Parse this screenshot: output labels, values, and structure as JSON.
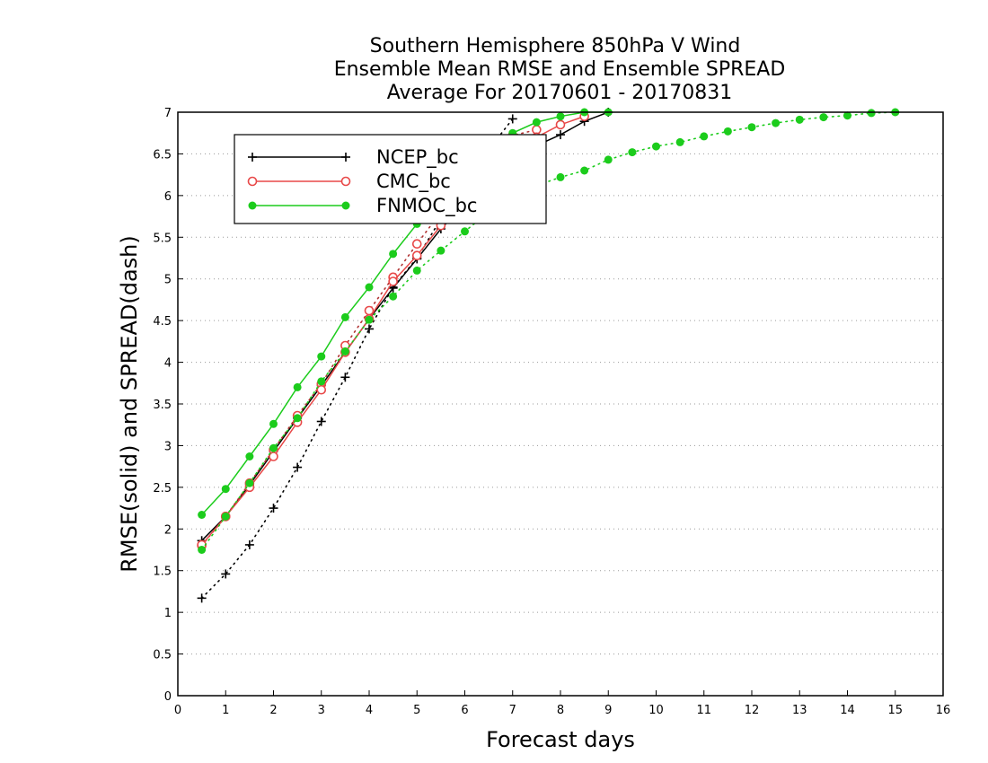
{
  "chart_data": {
    "type": "line",
    "title": [
      "Southern Hemisphere 850hPa V Wind",
      "Ensemble Mean RMSE and Ensemble SPREAD",
      "Average For 20170601 - 20170831"
    ],
    "xlabel": "Forecast days",
    "ylabel": "RMSE(solid) and SPREAD(dash)",
    "xlim": [
      0,
      16
    ],
    "ylim": [
      0,
      7
    ],
    "xticks": [
      "0",
      "1",
      "2",
      "3",
      "4",
      "5",
      "6",
      "7",
      "8",
      "9",
      "10",
      "11",
      "12",
      "13",
      "14",
      "15",
      "16"
    ],
    "yticks": [
      "0",
      "0.5",
      "1",
      "1.5",
      "2",
      "2.5",
      "3",
      "3.5",
      "4",
      "4.5",
      "5",
      "5.5",
      "6",
      "6.5",
      "7"
    ],
    "grid": "horizontal-dotted",
    "legend_position": "top-left",
    "series": [
      {
        "name": "NCEP_bc",
        "color": "#000000",
        "marker": "plus",
        "rmse": {
          "x": [
            0.5,
            1,
            1.5,
            2,
            2.5,
            3,
            3.5,
            4,
            4.5,
            5,
            5.5,
            6,
            6.5,
            7,
            7.5,
            8,
            8.5,
            9
          ],
          "y": [
            1.86,
            2.15,
            2.53,
            2.93,
            3.33,
            3.72,
            4.12,
            4.52,
            4.89,
            5.24,
            5.6,
            5.9,
            6.18,
            6.42,
            6.6,
            6.73,
            6.89,
            7.0
          ]
        },
        "spread": {
          "x": [
            0.5,
            1,
            1.5,
            2,
            2.5,
            3,
            3.5,
            4,
            4.5,
            5,
            5.5,
            6,
            6.5,
            7
          ],
          "y": [
            1.17,
            1.46,
            1.81,
            2.25,
            2.74,
            3.29,
            3.82,
            4.4,
            4.9,
            5.25,
            5.72,
            6.15,
            6.55,
            6.92
          ]
        }
      },
      {
        "name": "CMC_bc",
        "color": "#e84848",
        "marker": "open-circle",
        "rmse": {
          "x": [
            0.5,
            1,
            1.5,
            2,
            2.5,
            3,
            3.5,
            4,
            4.5,
            5,
            5.5,
            6,
            6.5,
            7,
            7.5,
            8,
            8.5
          ],
          "y": [
            1.81,
            2.15,
            2.5,
            2.87,
            3.28,
            3.67,
            4.12,
            4.52,
            4.97,
            5.28,
            5.64,
            5.97,
            6.27,
            6.52,
            6.7,
            6.85,
            6.95
          ]
        },
        "spread": {
          "x": [
            0.5,
            1,
            1.5,
            2,
            2.5,
            3,
            3.5,
            4,
            4.5,
            5,
            5.5,
            6,
            6.5,
            7,
            7.5
          ],
          "y": [
            1.8,
            2.15,
            2.55,
            2.95,
            3.36,
            3.74,
            4.2,
            4.62,
            5.02,
            5.42,
            5.8,
            6.15,
            6.48,
            6.72,
            6.79
          ]
        }
      },
      {
        "name": "FNMOC_bc",
        "color": "#1ccc1c",
        "marker": "filled-circle",
        "rmse": {
          "x": [
            0.5,
            1,
            1.5,
            2,
            2.5,
            3,
            3.5,
            4,
            4.5,
            5,
            5.5,
            6,
            6.5,
            7,
            7.5,
            8,
            8.5,
            9
          ],
          "y": [
            2.17,
            2.48,
            2.87,
            3.26,
            3.7,
            4.07,
            4.54,
            4.9,
            5.3,
            5.66,
            6.0,
            6.3,
            6.55,
            6.75,
            6.88,
            6.95,
            7.0,
            7.0
          ]
        },
        "spread": {
          "x": [
            0.5,
            1,
            1.5,
            2,
            2.5,
            3,
            3.5,
            4,
            4.5,
            5,
            5.5,
            6,
            6.5,
            7,
            7.5,
            8,
            8.5,
            9,
            9.5,
            10,
            10.5,
            11,
            11.5,
            12,
            12.5,
            13,
            13.5,
            14,
            14.5,
            15
          ],
          "y": [
            1.75,
            2.15,
            2.55,
            2.97,
            3.33,
            3.77,
            4.13,
            4.51,
            4.79,
            5.1,
            5.34,
            5.57,
            5.8,
            5.98,
            6.12,
            6.22,
            6.3,
            6.43,
            6.52,
            6.59,
            6.64,
            6.71,
            6.77,
            6.82,
            6.87,
            6.91,
            6.94,
            6.96,
            6.99,
            7.0
          ]
        }
      }
    ]
  }
}
